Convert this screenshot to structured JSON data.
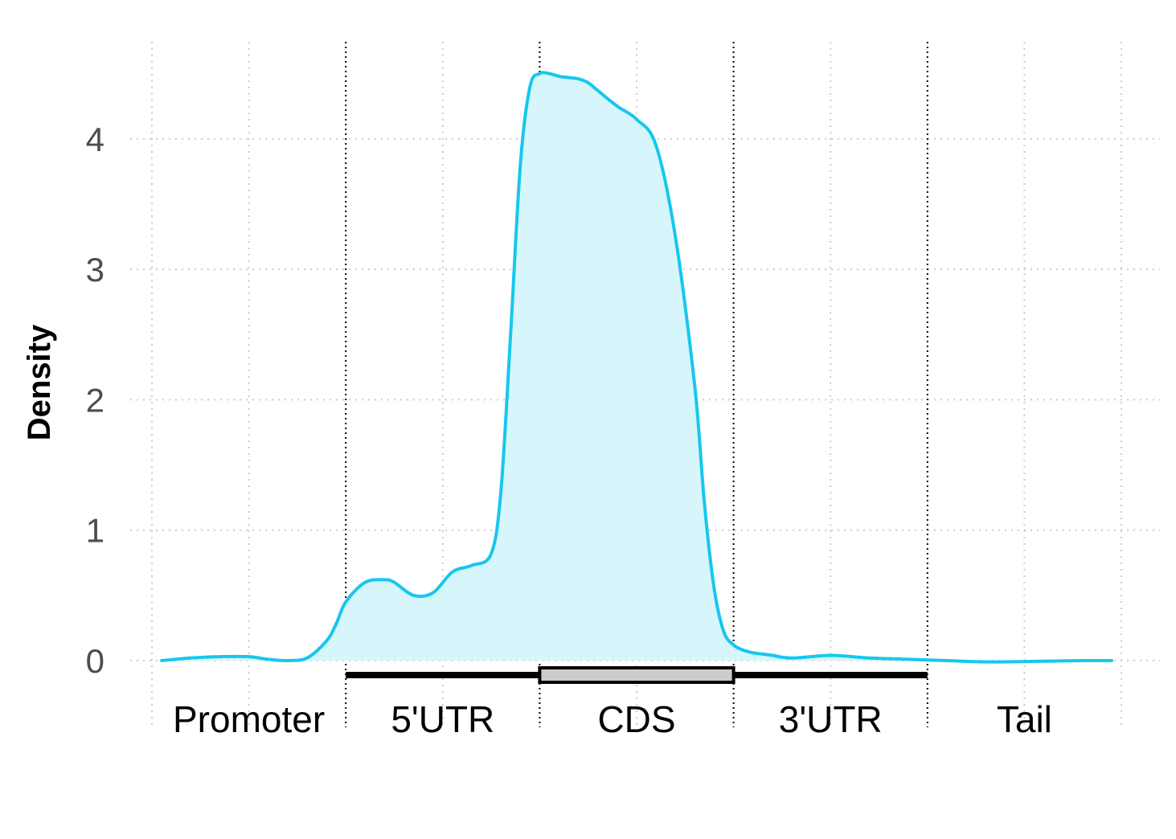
{
  "chart_data": {
    "type": "area",
    "title": "",
    "xlabel": "",
    "ylabel": "Density",
    "ylim": [
      -0.15,
      4.7
    ],
    "xlim": [
      0,
      5
    ],
    "yticks": [
      "0",
      "1",
      "2",
      "3",
      "4"
    ],
    "regions": [
      "Promoter",
      "5'UTR",
      "CDS",
      "3'UTR",
      "Tail"
    ],
    "grid": true,
    "legend": "none",
    "colors": {
      "line": "#17C7EE",
      "fill": "#D7F6FC",
      "gene_line": "#000000",
      "cds_box": "#CCCCCC",
      "grid": "#CCCCCC"
    },
    "series": [
      {
        "x": [
          0.05,
          0.2,
          0.35,
          0.5,
          0.6,
          0.7,
          0.8,
          0.9,
          0.95,
          1.0,
          1.1,
          1.2,
          1.25,
          1.35,
          1.45,
          1.55,
          1.65,
          1.75,
          1.8,
          1.85,
          1.9,
          1.95,
          2.0,
          2.05,
          2.1,
          2.15,
          2.2,
          2.25,
          2.3,
          2.4,
          2.5,
          2.6,
          2.7,
          2.8,
          2.85,
          2.9,
          2.95,
          3.0,
          3.05,
          3.1,
          3.15,
          3.2,
          3.3,
          3.5,
          3.7,
          3.9,
          4.1,
          4.3,
          4.6,
          4.8,
          4.95
        ],
        "y": [
          0.0,
          0.02,
          0.03,
          0.03,
          0.01,
          0.0,
          0.02,
          0.15,
          0.28,
          0.45,
          0.6,
          0.62,
          0.6,
          0.5,
          0.52,
          0.68,
          0.73,
          0.82,
          1.3,
          2.5,
          3.8,
          4.4,
          4.5,
          4.5,
          4.48,
          4.47,
          4.46,
          4.43,
          4.37,
          4.25,
          4.15,
          3.95,
          3.25,
          2.1,
          1.2,
          0.55,
          0.22,
          0.12,
          0.08,
          0.06,
          0.05,
          0.04,
          0.02,
          0.04,
          0.02,
          0.01,
          0.0,
          -0.01,
          -0.005,
          0.0,
          0.0
        ]
      }
    ]
  }
}
